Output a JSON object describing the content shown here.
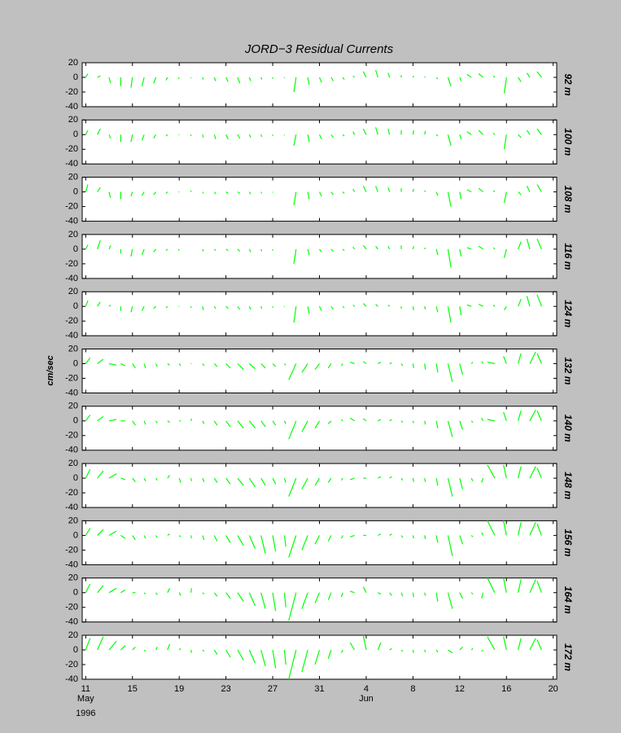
{
  "chart_data": {
    "type": "stick",
    "title": "JORD−3  Residual Currents",
    "ylabel": "cm/sec",
    "x": [
      11,
      12,
      13,
      14,
      15,
      16,
      17,
      18,
      19,
      20,
      21,
      22,
      23,
      24,
      25,
      26,
      27,
      28,
      29,
      30,
      31,
      32,
      33,
      34,
      35,
      36,
      37,
      38,
      39,
      40,
      41,
      42,
      43,
      44,
      45,
      46,
      47,
      48,
      49,
      50
    ],
    "xlim": [
      10.7,
      51.3
    ],
    "xticks": [
      11,
      15,
      19,
      23,
      27,
      31,
      {
        "value": 35,
        "label": "4"
      },
      {
        "value": 39,
        "label": "8"
      },
      {
        "value": 43,
        "label": "12"
      },
      {
        "value": 47,
        "label": "16"
      },
      {
        "value": 51,
        "label": "20"
      }
    ],
    "month_labels": [
      {
        "value": 11,
        "label": "May"
      },
      {
        "value": 35,
        "label": "Jun"
      }
    ],
    "year": "1996",
    "ylim": [
      -40,
      20
    ],
    "yticks": [
      -40,
      -20,
      0,
      20
    ],
    "series": [
      {
        "name": "92 m",
        "color": "#00ff00",
        "values": [
          5,
          2,
          -8,
          -12,
          -14,
          -12,
          -8,
          -4,
          -2,
          -1,
          -3,
          -5,
          -6,
          -8,
          -5,
          -3,
          -2,
          -1,
          -20,
          -10,
          -7,
          -5,
          -3,
          2,
          8,
          10,
          6,
          3,
          2,
          1,
          -2,
          -12,
          -5,
          4,
          5,
          2,
          -22,
          -6,
          6,
          8
        ],
        "u": [
          3,
          4,
          2,
          0,
          -2,
          -3,
          -3,
          -2,
          -1,
          0,
          1,
          2,
          3,
          3,
          2,
          1,
          0,
          0,
          -3,
          2,
          3,
          3,
          2,
          -2,
          -4,
          -3,
          -2,
          0,
          1,
          1,
          2,
          4,
          2,
          -6,
          -6,
          -2,
          -3,
          4,
          -4,
          -6
        ]
      },
      {
        "name": "100 m",
        "color": "#00ff00",
        "values": [
          6,
          8,
          -5,
          -10,
          -10,
          -8,
          -5,
          -2,
          0,
          -2,
          -4,
          -6,
          -6,
          -5,
          -4,
          -3,
          -2,
          -1,
          -15,
          -10,
          -6,
          -4,
          -2,
          4,
          8,
          10,
          8,
          6,
          6,
          5,
          -2,
          -15,
          -6,
          4,
          6,
          2,
          -20,
          -4,
          6,
          8
        ],
        "u": [
          3,
          4,
          2,
          0,
          -2,
          -3,
          -3,
          -2,
          -1,
          0,
          1,
          2,
          3,
          3,
          2,
          1,
          0,
          0,
          -3,
          2,
          3,
          3,
          2,
          -2,
          -4,
          -3,
          -2,
          0,
          1,
          1,
          2,
          4,
          2,
          -6,
          -6,
          -2,
          -3,
          4,
          -4,
          -6
        ]
      },
      {
        "name": "108 m",
        "color": "#00ff00",
        "values": [
          10,
          6,
          -8,
          -10,
          -6,
          -5,
          -4,
          -2,
          0,
          2,
          -2,
          -3,
          -2,
          -2,
          -3,
          -2,
          -1,
          0,
          -18,
          -10,
          -6,
          -4,
          -2,
          4,
          8,
          8,
          6,
          5,
          4,
          2,
          -5,
          -20,
          -10,
          3,
          5,
          2,
          -15,
          -4,
          8,
          10
        ],
        "u": [
          3,
          4,
          2,
          0,
          -2,
          -3,
          -3,
          -2,
          -1,
          0,
          1,
          2,
          3,
          3,
          2,
          1,
          0,
          0,
          -3,
          2,
          3,
          3,
          2,
          -2,
          -4,
          -3,
          -2,
          0,
          1,
          1,
          2,
          4,
          2,
          -6,
          -6,
          -2,
          -3,
          4,
          -4,
          -6
        ]
      },
      {
        "name": "116 m",
        "color": "#00ff00",
        "values": [
          6,
          12,
          5,
          -6,
          -10,
          -8,
          -4,
          -2,
          -2,
          0,
          -3,
          -2,
          -2,
          -3,
          -4,
          -3,
          -2,
          0,
          -20,
          -8,
          -4,
          -3,
          -2,
          3,
          5,
          4,
          4,
          5,
          4,
          2,
          -8,
          -25,
          -10,
          2,
          4,
          2,
          -12,
          10,
          14,
          14
        ],
        "u": [
          3,
          4,
          2,
          0,
          -2,
          -3,
          -3,
          -2,
          -1,
          0,
          1,
          2,
          3,
          3,
          2,
          1,
          0,
          0,
          -3,
          2,
          3,
          3,
          2,
          -2,
          -4,
          -3,
          -2,
          0,
          1,
          1,
          2,
          4,
          2,
          -6,
          -6,
          -2,
          -3,
          4,
          -4,
          -6
        ]
      },
      {
        "name": "124 m",
        "color": "#00ff00",
        "values": [
          8,
          6,
          2,
          -6,
          -8,
          -6,
          -3,
          -2,
          0,
          -2,
          -5,
          -3,
          -3,
          -4,
          -4,
          -3,
          -2,
          -1,
          -22,
          -10,
          -6,
          -4,
          -2,
          2,
          4,
          3,
          2,
          -3,
          -5,
          -4,
          -8,
          -22,
          -12,
          2,
          3,
          2,
          -5,
          10,
          14,
          16
        ],
        "u": [
          3,
          4,
          2,
          0,
          -2,
          -3,
          -3,
          -2,
          -1,
          0,
          1,
          2,
          3,
          3,
          2,
          1,
          0,
          0,
          -3,
          2,
          3,
          3,
          2,
          -2,
          -4,
          -3,
          -2,
          0,
          1,
          1,
          2,
          4,
          2,
          -6,
          -6,
          -2,
          -3,
          4,
          -4,
          -6
        ]
      },
      {
        "name": "132 m",
        "color": "#00ff00",
        "values": [
          8,
          6,
          -2,
          -3,
          -6,
          -6,
          -4,
          -2,
          -3,
          0,
          -3,
          -4,
          -6,
          -8,
          -7,
          -6,
          -4,
          -2,
          -22,
          -12,
          -8,
          -6,
          -3,
          2,
          3,
          2,
          1,
          -3,
          -6,
          -8,
          -12,
          -25,
          -15,
          2,
          3,
          2,
          10,
          14,
          16,
          14
        ],
        "u": [
          6,
          8,
          10,
          6,
          4,
          2,
          2,
          3,
          2,
          1,
          2,
          4,
          6,
          8,
          8,
          6,
          4,
          2,
          -10,
          -8,
          -6,
          -4,
          -2,
          -6,
          -4,
          4,
          3,
          2,
          1,
          1,
          2,
          6,
          4,
          2,
          -2,
          -10,
          -4,
          4,
          8,
          -6
        ]
      },
      {
        "name": "140 m",
        "color": "#00ff00",
        "values": [
          8,
          6,
          2,
          0,
          -6,
          -5,
          -3,
          -2,
          0,
          3,
          -4,
          -6,
          -8,
          -10,
          -10,
          -8,
          -6,
          -4,
          -25,
          -15,
          -10,
          -4,
          2,
          4,
          3,
          2,
          2,
          -2,
          -3,
          -5,
          -10,
          -22,
          -12,
          -2,
          4,
          2,
          12,
          14,
          15,
          14
        ],
        "u": [
          6,
          8,
          10,
          6,
          4,
          2,
          2,
          3,
          2,
          1,
          2,
          4,
          6,
          8,
          8,
          6,
          4,
          2,
          -10,
          -8,
          -6,
          -4,
          -2,
          -6,
          -4,
          4,
          3,
          2,
          1,
          1,
          2,
          6,
          4,
          2,
          -2,
          -10,
          -4,
          4,
          8,
          -6
        ]
      },
      {
        "name": "148 m",
        "color": "#00ff00",
        "values": [
          12,
          10,
          6,
          -2,
          -5,
          -4,
          -3,
          4,
          -6,
          -4,
          -5,
          -6,
          -8,
          -10,
          -12,
          -10,
          -8,
          -6,
          -25,
          -15,
          -10,
          -6,
          -3,
          -2,
          0,
          2,
          2,
          -3,
          -5,
          -5,
          -10,
          -25,
          -15,
          -4,
          -6,
          18,
          18,
          16,
          16,
          14
        ],
        "u": [
          6,
          8,
          10,
          6,
          4,
          2,
          2,
          3,
          2,
          1,
          2,
          4,
          6,
          8,
          8,
          6,
          4,
          2,
          -10,
          -8,
          -6,
          -4,
          -2,
          -6,
          -4,
          4,
          3,
          2,
          1,
          1,
          2,
          6,
          4,
          2,
          -2,
          -10,
          -4,
          4,
          8,
          -6
        ]
      },
      {
        "name": "156 m",
        "color": "#00ff00",
        "values": [
          10,
          8,
          6,
          -4,
          -6,
          -4,
          -3,
          2,
          -2,
          -4,
          -6,
          -8,
          -10,
          -14,
          -18,
          -25,
          -22,
          -15,
          -30,
          -20,
          -12,
          -8,
          -4,
          -2,
          0,
          2,
          2,
          -3,
          -4,
          -5,
          -10,
          -28,
          -12,
          -2,
          4,
          20,
          20,
          18,
          18,
          16
        ],
        "u": [
          6,
          8,
          10,
          6,
          4,
          2,
          2,
          3,
          2,
          1,
          2,
          4,
          6,
          8,
          8,
          6,
          4,
          2,
          -10,
          -8,
          -6,
          -4,
          -2,
          -6,
          -4,
          4,
          3,
          2,
          1,
          1,
          2,
          6,
          4,
          2,
          -2,
          -10,
          -4,
          4,
          8,
          -6
        ]
      },
      {
        "name": "164 m",
        "color": "#00ff00",
        "values": [
          12,
          10,
          6,
          4,
          0,
          -2,
          -3,
          6,
          -4,
          6,
          -2,
          -5,
          -8,
          -12,
          -18,
          -22,
          -25,
          -20,
          -38,
          -22,
          -14,
          -10,
          -6,
          2,
          8,
          -2,
          -4,
          -5,
          -6,
          -4,
          -12,
          -22,
          -8,
          -2,
          -8,
          20,
          20,
          18,
          18,
          16
        ],
        "u": [
          6,
          8,
          10,
          6,
          4,
          2,
          2,
          3,
          2,
          1,
          2,
          4,
          6,
          8,
          8,
          6,
          4,
          2,
          -10,
          -8,
          -6,
          -4,
          -2,
          -6,
          -4,
          4,
          3,
          2,
          1,
          1,
          2,
          6,
          4,
          2,
          -2,
          -10,
          -4,
          4,
          8,
          -6
        ]
      },
      {
        "name": "172 m",
        "color": "#00ff00",
        "values": [
          16,
          18,
          12,
          6,
          4,
          -2,
          4,
          8,
          2,
          -4,
          -2,
          -6,
          -10,
          -14,
          -18,
          -22,
          -25,
          -20,
          -40,
          -30,
          -20,
          -12,
          -4,
          10,
          20,
          10,
          2,
          -2,
          -4,
          -3,
          -3,
          -4,
          4,
          2,
          -2,
          18,
          18,
          16,
          16,
          14
        ],
        "u": [
          6,
          8,
          10,
          6,
          4,
          2,
          2,
          3,
          2,
          1,
          2,
          4,
          6,
          8,
          8,
          6,
          4,
          2,
          -10,
          -8,
          -6,
          -4,
          -2,
          -6,
          -4,
          4,
          3,
          2,
          1,
          1,
          2,
          6,
          4,
          2,
          -2,
          -10,
          -4,
          4,
          8,
          -6
        ]
      }
    ]
  }
}
